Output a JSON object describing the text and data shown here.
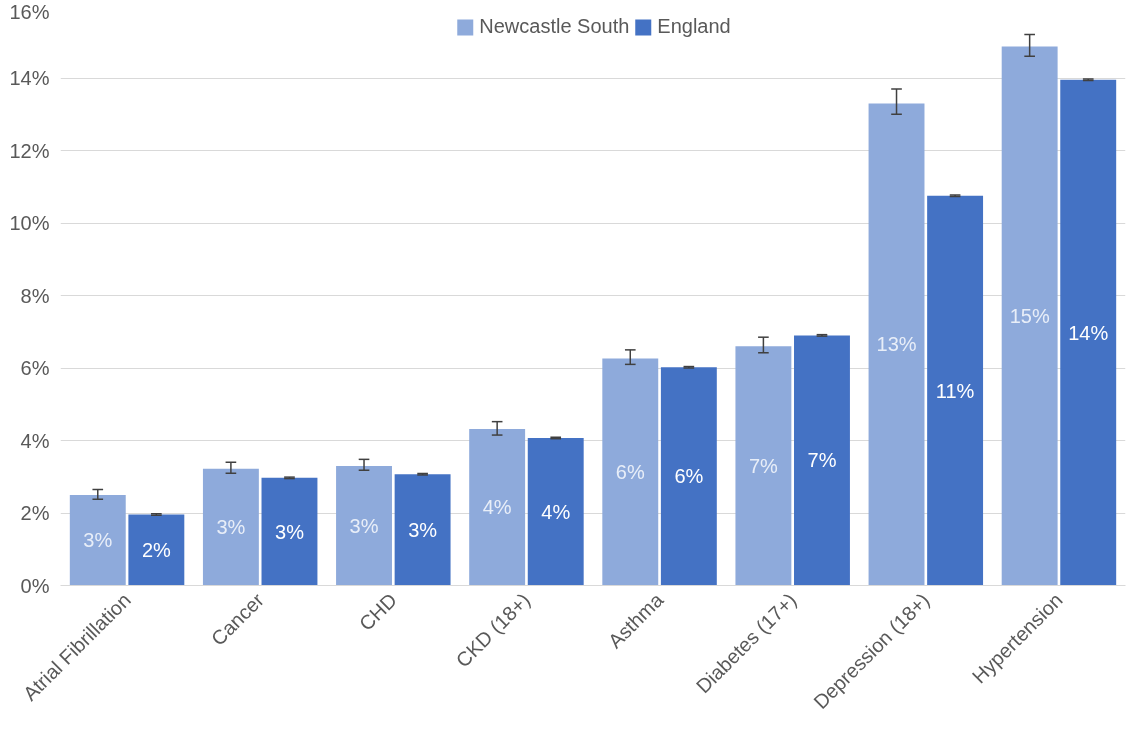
{
  "chart_data": {
    "type": "bar",
    "categories": [
      "Atrial Fibrillation",
      "Cancer",
      "CHD",
      "CKD (18+)",
      "Asthma",
      "Diabetes (17+)",
      "Depression (18+)",
      "Hypertension"
    ],
    "series": [
      {
        "name": "Newcastle South",
        "color": "#8eaadb",
        "values": [
          2.5,
          3.22,
          3.3,
          4.32,
          6.26,
          6.6,
          13.3,
          14.87
        ],
        "errors": [
          [
            2.38,
            2.65
          ],
          [
            3.1,
            3.4
          ],
          [
            3.18,
            3.48
          ],
          [
            4.15,
            4.52
          ],
          [
            6.1,
            6.5
          ],
          [
            6.42,
            6.85
          ],
          [
            13.0,
            13.7
          ],
          [
            14.6,
            15.2
          ]
        ],
        "value_labels": [
          "3%",
          "3%",
          "3%",
          "4%",
          "6%",
          "7%",
          "13%",
          "15%"
        ]
      },
      {
        "name": "England",
        "color": "#4472c4",
        "values": [
          1.96,
          2.97,
          3.07,
          4.07,
          6.02,
          6.9,
          10.75,
          13.95
        ],
        "errors": [
          0.02,
          0.02,
          0.02,
          0.02,
          0.02,
          0.02,
          0.02,
          0.02
        ],
        "value_labels": [
          "2%",
          "3%",
          "3%",
          "4%",
          "6%",
          "7%",
          "11%",
          "14%"
        ]
      }
    ],
    "ylim": [
      0,
      16
    ],
    "yticks": [
      {
        "value": 0,
        "label": "0%"
      },
      {
        "value": 2,
        "label": "2%"
      },
      {
        "value": 4,
        "label": "4%"
      },
      {
        "value": 6,
        "label": "6%"
      },
      {
        "value": 8,
        "label": "8%"
      },
      {
        "value": 10,
        "label": "10%"
      },
      {
        "value": 12,
        "label": "12%"
      },
      {
        "value": 14,
        "label": "14%"
      },
      {
        "value": 16,
        "label": "16%"
      }
    ],
    "grid": "y",
    "legend": "top"
  }
}
